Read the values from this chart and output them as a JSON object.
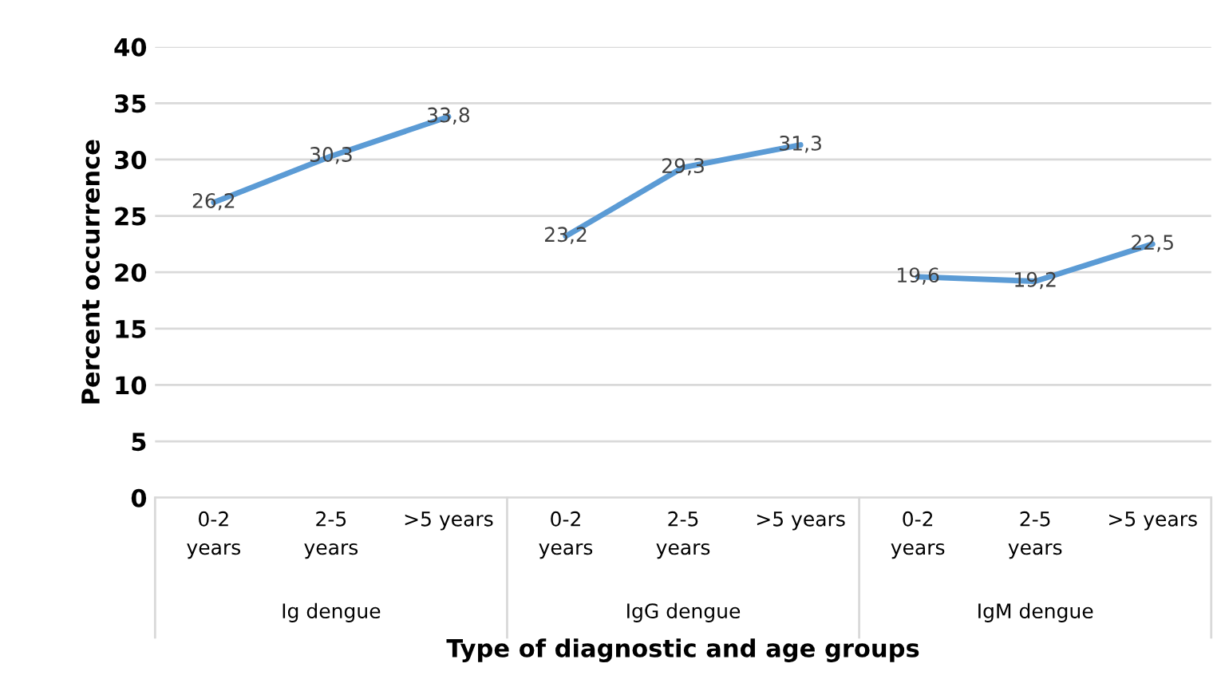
{
  "chart_data": {
    "type": "line",
    "xlabel": "Type of diagnostic and age groups",
    "ylabel": "Percent occurrence",
    "categories": [
      "0-2\nyears",
      "2-5\nyears",
      ">5 years",
      "0-2\nyears",
      "2-5\nyears",
      ">5 years",
      "0-2\nyears",
      "2-5\nyears",
      ">5 years"
    ],
    "series": [
      {
        "color": "#5b9bd5",
        "values": [
          26.2,
          30.3,
          33.8,
          null,
          null,
          null,
          null,
          null,
          null
        ],
        "value_labels": [
          "26,2",
          "30,3",
          "33,8",
          null,
          null,
          null,
          null,
          null,
          null
        ]
      },
      {
        "color": "#5b9bd5",
        "values": [
          null,
          null,
          null,
          23.2,
          29.3,
          31.3,
          null,
          null,
          null
        ],
        "value_labels": [
          null,
          null,
          null,
          "23,2",
          "29,3",
          "31,3",
          null,
          null,
          null
        ]
      },
      {
        "color": "#5b9bd5",
        "values": [
          null,
          null,
          null,
          null,
          null,
          null,
          19.6,
          19.2,
          22.5
        ],
        "value_labels": [
          null,
          null,
          null,
          null,
          null,
          null,
          "19,6",
          "19,2",
          "22,5"
        ]
      }
    ],
    "ylim": [
      0,
      40
    ],
    "yticks": [
      0,
      5,
      10,
      15,
      20,
      25,
      30,
      35,
      40
    ],
    "annotations": [
      "Ig dengue",
      "IgG dengue",
      "IgM dengue"
    ],
    "grid": "y",
    "marker": "none",
    "line_style": "solid"
  }
}
